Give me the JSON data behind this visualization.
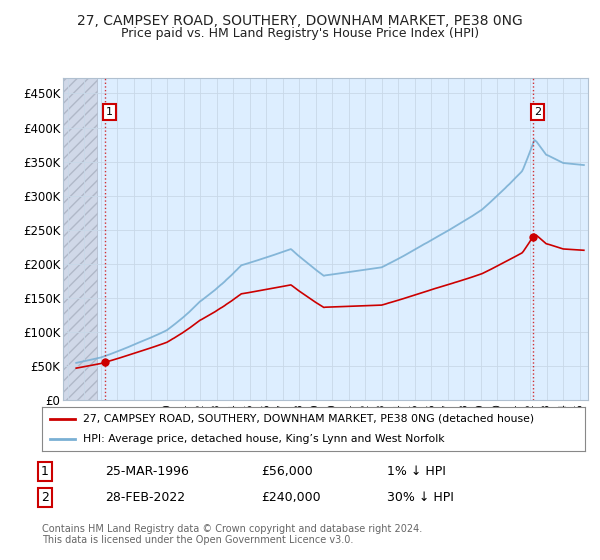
{
  "title": "27, CAMPSEY ROAD, SOUTHERY, DOWNHAM MARKET, PE38 0NG",
  "subtitle": "Price paid vs. HM Land Registry's House Price Index (HPI)",
  "ylabel_ticks": [
    0,
    50000,
    100000,
    150000,
    200000,
    250000,
    300000,
    350000,
    400000,
    450000
  ],
  "ylim": [
    0,
    472000
  ],
  "xlim_left": 1993.7,
  "xlim_right": 2025.5,
  "sale1_year": 1996.23,
  "sale1_price": 56000,
  "sale1_label": "1",
  "sale2_year": 2022.16,
  "sale2_price": 240000,
  "sale2_label": "2",
  "hatch_end_year": 1995.75,
  "line_color_red": "#cc0000",
  "line_color_blue": "#7ab0d4",
  "grid_color": "#c8d8e8",
  "bg_color": "#ddeeff",
  "legend_line1": "27, CAMPSEY ROAD, SOUTHERY, DOWNHAM MARKET, PE38 0NG (detached house)",
  "legend_line2": "HPI: Average price, detached house, King’s Lynn and West Norfolk",
  "table_row1": [
    "1",
    "25-MAR-1996",
    "£56,000",
    "1% ↓ HPI"
  ],
  "table_row2": [
    "2",
    "28-FEB-2022",
    "£240,000",
    "30% ↓ HPI"
  ],
  "footer": "Contains HM Land Registry data © Crown copyright and database right 2024.\nThis data is licensed under the Open Government Licence v3.0."
}
